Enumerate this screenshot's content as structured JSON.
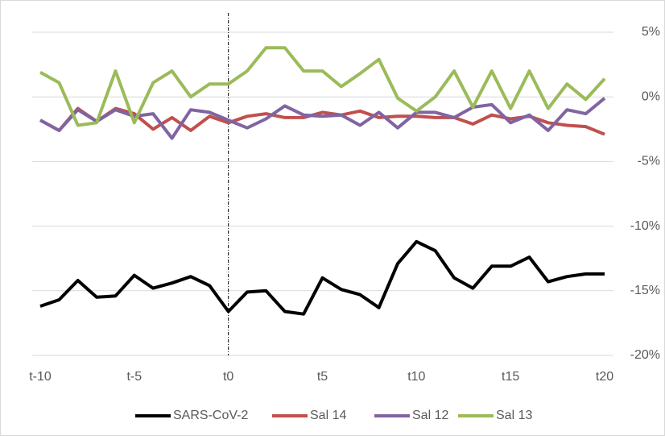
{
  "chart_data": {
    "type": "line",
    "categories": [
      "t-10",
      null,
      null,
      null,
      null,
      "t-5",
      null,
      null,
      null,
      null,
      "t0",
      null,
      null,
      null,
      null,
      "t5",
      null,
      null,
      null,
      null,
      "t10",
      null,
      null,
      null,
      null,
      "t15",
      null,
      null,
      null,
      null,
      "t20"
    ],
    "series": [
      {
        "name": "SARS-CoV-2",
        "color": "#000000",
        "values": [
          -16.2,
          -15.7,
          -14.2,
          -15.5,
          -15.4,
          -13.8,
          -14.8,
          -14.4,
          -13.9,
          -14.6,
          -16.6,
          -15.1,
          -15.0,
          -16.6,
          -16.8,
          -14.0,
          -14.9,
          -15.3,
          -16.3,
          -12.9,
          -11.2,
          -11.9,
          -14.0,
          -14.8,
          -13.1,
          -13.1,
          -12.4,
          -14.3,
          -13.9,
          -13.7,
          -13.7
        ]
      },
      {
        "name": "Sal 14",
        "color": "#c0504d",
        "values": [
          -1.8,
          -2.6,
          -0.9,
          -1.9,
          -0.9,
          -1.3,
          -2.5,
          -1.6,
          -2.6,
          -1.5,
          -2.0,
          -1.5,
          -1.3,
          -1.6,
          -1.6,
          -1.2,
          -1.4,
          -1.1,
          -1.6,
          -1.5,
          -1.5,
          -1.6,
          -1.6,
          -2.1,
          -1.4,
          -1.7,
          -1.5,
          -2.0,
          -2.2,
          -2.3,
          -2.9
        ]
      },
      {
        "name": "Sal 12",
        "color": "#8064a2",
        "values": [
          -1.8,
          -2.6,
          -1.0,
          -1.9,
          -1.0,
          -1.5,
          -1.3,
          -3.2,
          -1.0,
          -1.2,
          -1.8,
          -2.4,
          -1.7,
          -0.7,
          -1.4,
          -1.5,
          -1.4,
          -2.2,
          -1.2,
          -2.4,
          -1.2,
          -1.2,
          -1.6,
          -0.8,
          -0.6,
          -2.0,
          -1.4,
          -2.6,
          -1.0,
          -1.3,
          -0.1
        ]
      },
      {
        "name": "Sal 13",
        "color": "#9bbb59",
        "values": [
          1.9,
          1.1,
          -2.2,
          -2.0,
          2.0,
          -2.0,
          1.1,
          2.0,
          0,
          1.0,
          1.0,
          2.0,
          3.8,
          3.8,
          2.0,
          2.0,
          0.8,
          1.8,
          2.9,
          -0.1,
          -1.1,
          0,
          2.0,
          -0.8,
          2.0,
          -0.9,
          2.0,
          -0.9,
          1.0,
          -0.2,
          1.4
        ]
      }
    ],
    "ylim": [
      -20,
      5
    ],
    "yticks": [
      {
        "value": -20,
        "label": "-20%"
      },
      {
        "value": -15,
        "label": "-15%"
      },
      {
        "value": -10,
        "label": "-10%"
      },
      {
        "value": -5,
        "label": "-5%"
      },
      {
        "value": 0,
        "label": "0%"
      },
      {
        "value": 5,
        "label": "5%"
      }
    ],
    "grid": true,
    "legend": "bottom"
  }
}
